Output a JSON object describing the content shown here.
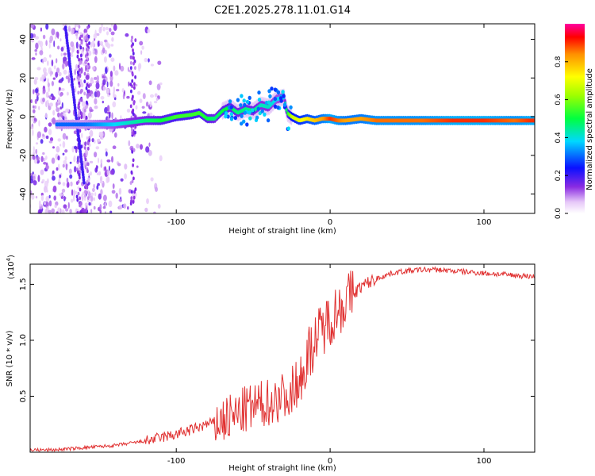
{
  "title": "C2E1.2025.278.11.01.G14",
  "chart_data": [
    {
      "type": "heatmap",
      "xlabel": "Height of straight line (km)",
      "ylabel": "Frequency (Hz)",
      "xlim": [
        -195,
        133
      ],
      "ylim": [
        -50,
        48
      ],
      "xticks": [
        -100,
        0,
        100
      ],
      "yticks": [
        -40,
        -20,
        0,
        20,
        40
      ],
      "colorbar": {
        "label": "Normalized spectral amplitude",
        "range": [
          0,
          1
        ],
        "ticks": [
          "0.0",
          "0.2",
          "0.4",
          "0.6",
          "0.8"
        ],
        "tick_values": [
          0.0,
          0.2,
          0.4,
          0.6,
          0.8
        ]
      },
      "ridge": {
        "x": [
          -176,
          -160,
          -150,
          -140,
          -130,
          -120,
          -110,
          -100,
          -90,
          -85,
          -80,
          -75,
          -70,
          -65,
          -60,
          -55,
          -50,
          -45,
          -40,
          -35,
          -30,
          -28,
          -25,
          -20,
          -15,
          -10,
          -5,
          0,
          5,
          10,
          20,
          30,
          40,
          60,
          80,
          100,
          120,
          130
        ],
        "frequency": [
          -4,
          -4,
          -4,
          -4,
          -3,
          -2,
          -2,
          0,
          1,
          2,
          -1,
          -1,
          3,
          5,
          2,
          4,
          3,
          6,
          5,
          9,
          10,
          2,
          0,
          -2,
          -1,
          -2,
          -1,
          -1,
          -2,
          -2,
          -1,
          -2,
          -2,
          -2,
          -2,
          -2,
          -2,
          -2
        ],
        "amplitude": [
          0.25,
          0.25,
          0.3,
          0.35,
          0.4,
          0.45,
          0.5,
          0.55,
          0.55,
          0.55,
          0.5,
          0.45,
          0.5,
          0.5,
          0.45,
          0.45,
          0.45,
          0.4,
          0.4,
          0.35,
          0.35,
          0.5,
          0.7,
          0.75,
          0.8,
          0.85,
          0.9,
          1.0,
          0.95,
          0.9,
          0.9,
          0.95,
          0.95,
          0.95,
          1.0,
          1.0,
          0.95,
          1.0
        ]
      },
      "chirp_streak": {
        "x": [
          -172,
          -160
        ],
        "frequency": [
          46,
          -34
        ]
      },
      "noise_region_x": [
        -195,
        -140
      ]
    },
    {
      "type": "line",
      "xlabel": "Height of straight line (km)",
      "ylabel": "SNR (10 * v/v)",
      "multiplier_label": "(x10",
      "multiplier_exp": "4",
      "xlim": [
        -195,
        133
      ],
      "ylim": [
        0,
        1.68
      ],
      "xticks": [
        -100,
        0,
        100
      ],
      "yticks": [
        0.5,
        1.0,
        1.5
      ],
      "ytick_labels": [
        "0.5",
        "1.0",
        "1.5"
      ],
      "color": "#e03030",
      "series": [
        {
          "x": [
            -195,
            -180,
            -170,
            -160,
            -150,
            -140,
            -130,
            -120,
            -110,
            -100,
            -90,
            -80,
            -70,
            -60,
            -55,
            -50,
            -45,
            -40,
            -35,
            -30,
            -25,
            -20,
            -15,
            -10,
            -5,
            0,
            10,
            20,
            30,
            40,
            50,
            60,
            70,
            80,
            90,
            100,
            110,
            120,
            133
          ],
          "y": [
            0.02,
            0.02,
            0.03,
            0.04,
            0.05,
            0.06,
            0.08,
            0.1,
            0.13,
            0.16,
            0.2,
            0.25,
            0.28,
            0.33,
            0.38,
            0.4,
            0.42,
            0.45,
            0.48,
            0.5,
            0.55,
            0.65,
            0.85,
            1.0,
            1.1,
            1.2,
            1.35,
            1.48,
            1.55,
            1.6,
            1.62,
            1.63,
            1.63,
            1.62,
            1.61,
            1.6,
            1.59,
            1.58,
            1.57
          ]
        }
      ]
    }
  ]
}
